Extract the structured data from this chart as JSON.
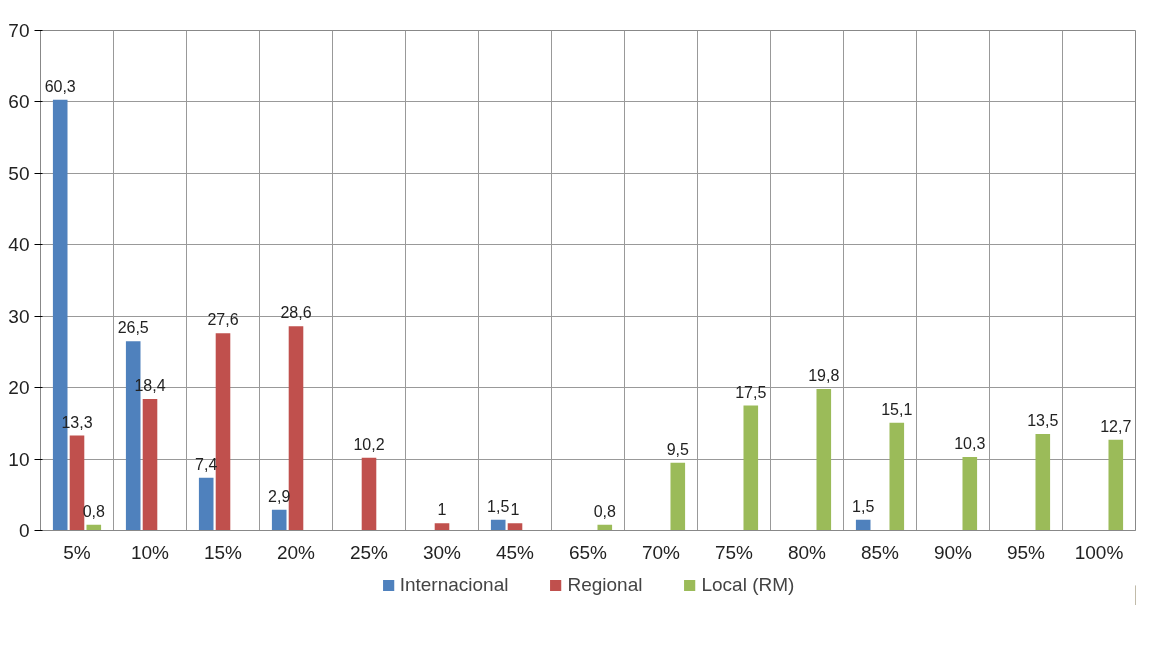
{
  "chart_data": {
    "type": "bar",
    "categories": [
      "5%",
      "10%",
      "15%",
      "20%",
      "25%",
      "30%",
      "45%",
      "65%",
      "70%",
      "75%",
      "80%",
      "85%",
      "90%",
      "95%",
      "100%"
    ],
    "series": [
      {
        "name": "Internacional",
        "color": "#4f81bd",
        "values": [
          60.3,
          26.5,
          7.4,
          2.9,
          null,
          null,
          1.5,
          null,
          null,
          null,
          null,
          1.5,
          null,
          null,
          null
        ],
        "value_labels": [
          "60,3",
          "26,5",
          "7,4",
          "2,9",
          null,
          null,
          "1,5",
          null,
          null,
          null,
          null,
          "1,5",
          null,
          null,
          null
        ]
      },
      {
        "name": "Regional",
        "color": "#c0504d",
        "values": [
          13.3,
          18.4,
          27.6,
          28.6,
          10.2,
          1,
          1,
          null,
          null,
          null,
          null,
          null,
          null,
          null,
          null
        ],
        "value_labels": [
          "13,3",
          "18,4",
          "27,6",
          "28,6",
          "10,2",
          "1",
          "1",
          null,
          null,
          null,
          null,
          null,
          null,
          null,
          null
        ]
      },
      {
        "name": "Local (RM)",
        "color": "#9bbb59",
        "values": [
          0.8,
          null,
          null,
          null,
          null,
          null,
          null,
          0.8,
          9.5,
          17.5,
          19.8,
          15.1,
          10.3,
          13.5,
          12.7
        ],
        "value_labels": [
          "0,8",
          null,
          null,
          null,
          null,
          null,
          null,
          "0,8",
          "9,5",
          "17,5",
          "19,8",
          "15,1",
          "10,3",
          "13,5",
          "12,7"
        ]
      }
    ],
    "ylim": [
      0,
      70
    ],
    "yticks": [
      0,
      10,
      20,
      30,
      40,
      50,
      60,
      70
    ],
    "grid": true,
    "legend": "bottom"
  }
}
